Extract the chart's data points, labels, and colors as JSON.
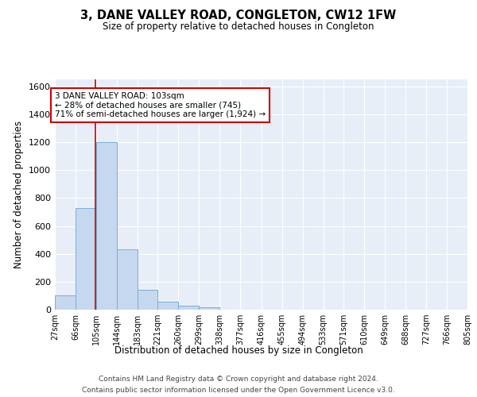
{
  "title": "3, DANE VALLEY ROAD, CONGLETON, CW12 1FW",
  "subtitle": "Size of property relative to detached houses in Congleton",
  "xlabel": "Distribution of detached houses by size in Congleton",
  "ylabel": "Number of detached properties",
  "bin_edges": [
    27,
    66,
    105,
    144,
    183,
    221,
    260,
    299,
    338,
    377,
    416,
    455,
    494,
    533,
    571,
    610,
    649,
    688,
    727,
    766,
    805
  ],
  "bar_heights": [
    105,
    730,
    1200,
    435,
    145,
    55,
    30,
    15,
    0,
    0,
    0,
    0,
    0,
    0,
    0,
    0,
    0,
    0,
    0,
    0
  ],
  "bar_color": "#c5d8ef",
  "bar_edge_color": "#7aafd4",
  "background_color": "#e8eef8",
  "grid_color": "#ffffff",
  "property_size": 103,
  "red_line_color": "#cc0000",
  "annotation_text": "3 DANE VALLEY ROAD: 103sqm\n← 28% of detached houses are smaller (745)\n71% of semi-detached houses are larger (1,924) →",
  "annotation_box_color": "#ffffff",
  "annotation_box_edge": "#cc0000",
  "ylim": [
    0,
    1650
  ],
  "yticks": [
    0,
    200,
    400,
    600,
    800,
    1000,
    1200,
    1400,
    1600
  ],
  "footer_line1": "Contains HM Land Registry data © Crown copyright and database right 2024.",
  "footer_line2": "Contains public sector information licensed under the Open Government Licence v3.0."
}
